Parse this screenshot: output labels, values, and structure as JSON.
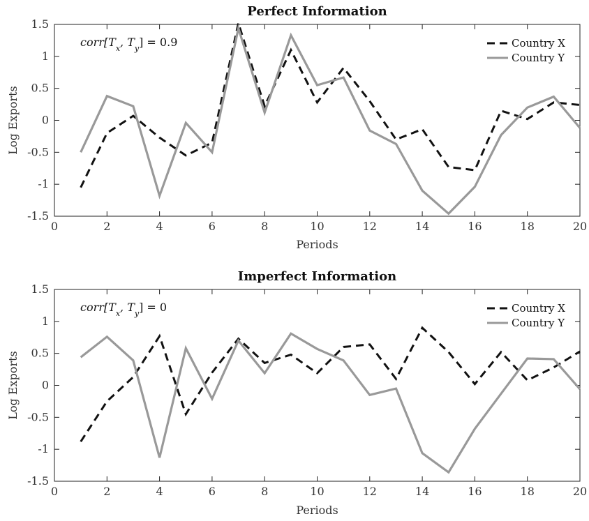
{
  "chart_data": [
    {
      "type": "line",
      "title": "Perfect Information",
      "xlabel": "Periods",
      "ylabel": "Log Exports",
      "xlim": [
        0,
        20
      ],
      "ylim": [
        -1.5,
        1.5
      ],
      "x_ticks": [
        0,
        2,
        4,
        6,
        8,
        10,
        12,
        14,
        16,
        18,
        20
      ],
      "y_ticks": [
        -1.5,
        -1,
        -0.5,
        0,
        0.5,
        1,
        1.5
      ],
      "x_tick_labels": [
        "0",
        "2",
        "4",
        "6",
        "8",
        "10",
        "12",
        "14",
        "16",
        "18",
        "20"
      ],
      "y_tick_labels": [
        "-1.5",
        "-1",
        "-0.5",
        "0",
        "0.5",
        "1",
        "1.5"
      ],
      "annotation": {
        "func": "corr",
        "args": "[T",
        "sub1": "x",
        "mid": ", T",
        "sub2": "y",
        "close": "]",
        "rest": " = 0.9"
      },
      "legend_position": "top-right",
      "grid": false,
      "x": [
        1,
        2,
        3,
        4,
        5,
        6,
        7,
        8,
        9,
        10,
        11,
        12,
        13,
        14,
        15,
        16,
        17,
        18,
        19,
        20
      ],
      "series": [
        {
          "name": "Country X",
          "color": "#111111",
          "dash": true,
          "values": [
            -1.05,
            -0.2,
            0.07,
            -0.27,
            -0.55,
            -0.35,
            1.52,
            0.22,
            1.1,
            0.28,
            0.82,
            0.3,
            -0.3,
            -0.14,
            -0.73,
            -0.78,
            0.15,
            0.02,
            0.28,
            0.24
          ]
        },
        {
          "name": "Country Y",
          "color": "#999999",
          "dash": false,
          "values": [
            -0.5,
            0.38,
            0.22,
            -1.18,
            -0.04,
            -0.5,
            1.44,
            0.12,
            1.33,
            0.55,
            0.67,
            -0.16,
            -0.37,
            -1.1,
            -1.46,
            -1.04,
            -0.23,
            0.2,
            0.37,
            -0.12
          ]
        }
      ]
    },
    {
      "type": "line",
      "title": "Imperfect Information",
      "xlabel": "Periods",
      "ylabel": "Log Exports",
      "xlim": [
        0,
        20
      ],
      "ylim": [
        -1.5,
        1.5
      ],
      "x_ticks": [
        0,
        2,
        4,
        6,
        8,
        10,
        12,
        14,
        16,
        18,
        20
      ],
      "y_ticks": [
        -1.5,
        -1,
        -0.5,
        0,
        0.5,
        1,
        1.5
      ],
      "x_tick_labels": [
        "0",
        "2",
        "4",
        "6",
        "8",
        "10",
        "12",
        "14",
        "16",
        "18",
        "20"
      ],
      "y_tick_labels": [
        "-1.5",
        "-1",
        "-0.5",
        "0",
        "0.5",
        "1",
        "1.5"
      ],
      "annotation": {
        "func": "corr",
        "args": "[T",
        "sub1": "x",
        "mid": ", T",
        "sub2": "y",
        "close": "]",
        "rest": " = 0"
      },
      "legend_position": "top-right",
      "grid": false,
      "x": [
        1,
        2,
        3,
        4,
        5,
        6,
        7,
        8,
        9,
        10,
        11,
        12,
        13,
        14,
        15,
        16,
        17,
        18,
        19,
        20
      ],
      "series": [
        {
          "name": "Country X",
          "color": "#111111",
          "dash": true,
          "values": [
            -0.88,
            -0.25,
            0.13,
            0.77,
            -0.45,
            0.2,
            0.73,
            0.35,
            0.48,
            0.19,
            0.6,
            0.64,
            0.1,
            0.9,
            0.52,
            0.02,
            0.52,
            0.08,
            0.28,
            0.53
          ]
        },
        {
          "name": "Country Y",
          "color": "#999999",
          "dash": false,
          "values": [
            0.44,
            0.76,
            0.39,
            -1.13,
            0.58,
            -0.21,
            0.7,
            0.19,
            0.81,
            0.57,
            0.39,
            -0.15,
            -0.05,
            -1.06,
            -1.36,
            -0.68,
            -0.13,
            0.42,
            0.41,
            -0.06
          ]
        }
      ]
    }
  ]
}
